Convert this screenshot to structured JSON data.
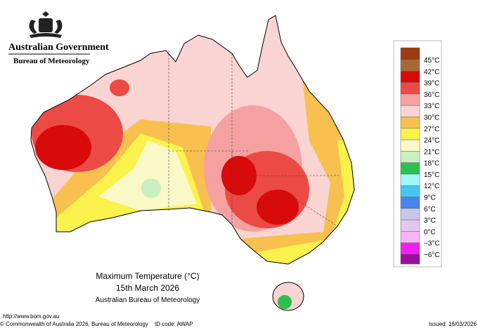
{
  "header": {
    "government": "Australian Government",
    "bureau": "Bureau of Meteorology"
  },
  "legend": {
    "labels": [
      "45°C",
      "42°C",
      "39°C",
      "36°C",
      "33°C",
      "30°C",
      "27°C",
      "24°C",
      "21°C",
      "18°C",
      "15°C",
      "12°C",
      "9°C",
      "6°C",
      "3°C",
      "0°C",
      "−3°C",
      "−6°C"
    ],
    "colors": [
      "#9a3b12",
      "#a8693a",
      "#d80a0a",
      "#ec4a44",
      "#f5a1a1",
      "#fad3d3",
      "#f8c04e",
      "#fbf24c",
      "#f9f8c6",
      "#c8f0c0",
      "#2fbf4f",
      "#9ff7f7",
      "#45c7f1",
      "#4a82ee",
      "#c6c8e4",
      "#e2c8ee",
      "#f8b4f6",
      "#f21ff0",
      "#9a0ea0"
    ]
  },
  "caption": {
    "title": "Maximum Temperature (°C)",
    "date": "15th March 2026",
    "agency": "Australian Bureau of Meteorology"
  },
  "footer": {
    "url": "http://www.bom.gov.au",
    "copyright": "© Commonwealth of Australia 2026, Bureau of Meteorology",
    "id_code": "ID code: AWAP",
    "issued": "Issued: 16/03/2026"
  }
}
